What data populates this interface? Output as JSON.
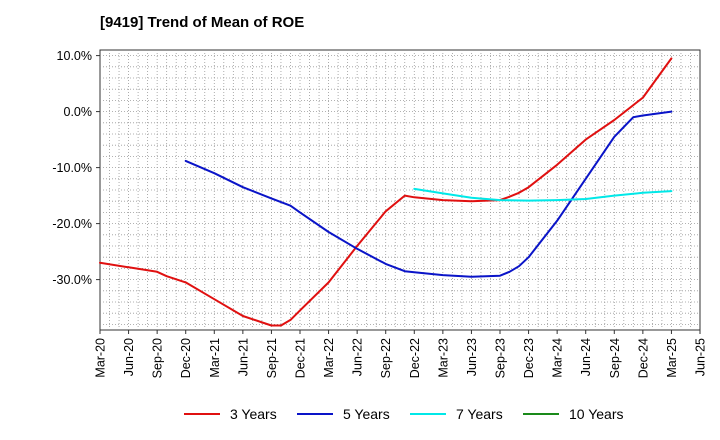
{
  "chart_data": {
    "type": "line",
    "title": "[9419]  Trend of Mean of ROE",
    "xlabel": "",
    "ylabel": "",
    "ylim": [
      -39,
      11
    ],
    "yticks": [
      10,
      0,
      -10,
      -20,
      -30
    ],
    "ytick_labels": [
      "10.0%",
      "0.0%",
      "-10.0%",
      "-20.0%",
      "-30.0%"
    ],
    "x_ticks": [
      "Mar-20",
      "Jun-20",
      "Sep-20",
      "Dec-20",
      "Mar-21",
      "Jun-21",
      "Sep-21",
      "Dec-21",
      "Mar-22",
      "Jun-22",
      "Sep-22",
      "Dec-22",
      "Mar-23",
      "Jun-23",
      "Sep-23",
      "Dec-23",
      "Mar-24",
      "Jun-24",
      "Sep-24",
      "Dec-24",
      "Mar-25",
      "Jun-25"
    ],
    "grid": true,
    "legend_position": "bottom",
    "series": [
      {
        "name": "3 Years",
        "color": "#e01010",
        "points": [
          [
            "Mar-20",
            -27.0
          ],
          [
            "Jun-20",
            -27.8
          ],
          [
            "Sep-20",
            -28.6
          ],
          [
            "Oct-20",
            -29.4
          ],
          [
            "Dec-20",
            -30.5
          ],
          [
            "Mar-21",
            -33.5
          ],
          [
            "Jun-21",
            -36.5
          ],
          [
            "Sep-21",
            -38.2
          ],
          [
            "Oct-21",
            -38.2
          ],
          [
            "Nov-21",
            -37.2
          ],
          [
            "Dec-21",
            -35.5
          ],
          [
            "Mar-22",
            -30.5
          ],
          [
            "Jun-22",
            -24.0
          ],
          [
            "Sep-22",
            -17.8
          ],
          [
            "Nov-22",
            -15.0
          ],
          [
            "Dec-22",
            -15.3
          ],
          [
            "Mar-23",
            -15.8
          ],
          [
            "Jun-23",
            -16.0
          ],
          [
            "Sep-23",
            -15.8
          ],
          [
            "Oct-23",
            -15.2
          ],
          [
            "Nov-23",
            -14.5
          ],
          [
            "Dec-23",
            -13.5
          ],
          [
            "Mar-24",
            -9.5
          ],
          [
            "Jun-24",
            -5.0
          ],
          [
            "Sep-24",
            -1.5
          ],
          [
            "Dec-24",
            2.5
          ],
          [
            "Mar-25",
            9.5
          ]
        ]
      },
      {
        "name": "5 Years",
        "color": "#0a14c8",
        "points": [
          [
            "Dec-20",
            -8.8
          ],
          [
            "Mar-21",
            -11.0
          ],
          [
            "Jun-21",
            -13.5
          ],
          [
            "Sep-21",
            -15.5
          ],
          [
            "Nov-21",
            -16.8
          ],
          [
            "Dec-21",
            -18.0
          ],
          [
            "Mar-22",
            -21.5
          ],
          [
            "Jun-22",
            -24.5
          ],
          [
            "Sep-22",
            -27.2
          ],
          [
            "Nov-22",
            -28.5
          ],
          [
            "Dec-22",
            -28.7
          ],
          [
            "Mar-23",
            -29.2
          ],
          [
            "Jun-23",
            -29.5
          ],
          [
            "Sep-23",
            -29.3
          ],
          [
            "Oct-23",
            -28.6
          ],
          [
            "Nov-23",
            -27.6
          ],
          [
            "Dec-23",
            -26.0
          ],
          [
            "Mar-24",
            -19.5
          ],
          [
            "Jun-24",
            -12.0
          ],
          [
            "Sep-24",
            -4.5
          ],
          [
            "Nov-24",
            -1.0
          ],
          [
            "Dec-24",
            -0.7
          ],
          [
            "Mar-25",
            0.0
          ]
        ]
      },
      {
        "name": "7 Years",
        "color": "#00e8e8",
        "points": [
          [
            "Dec-22",
            -13.8
          ],
          [
            "Mar-23",
            -14.6
          ],
          [
            "Jun-23",
            -15.4
          ],
          [
            "Sep-23",
            -15.8
          ],
          [
            "Dec-23",
            -15.9
          ],
          [
            "Mar-24",
            -15.8
          ],
          [
            "Jun-24",
            -15.6
          ],
          [
            "Sep-24",
            -15.0
          ],
          [
            "Dec-24",
            -14.5
          ],
          [
            "Mar-25",
            -14.2
          ]
        ]
      },
      {
        "name": "10 Years",
        "color": "#1a8a1a",
        "points": []
      }
    ]
  }
}
